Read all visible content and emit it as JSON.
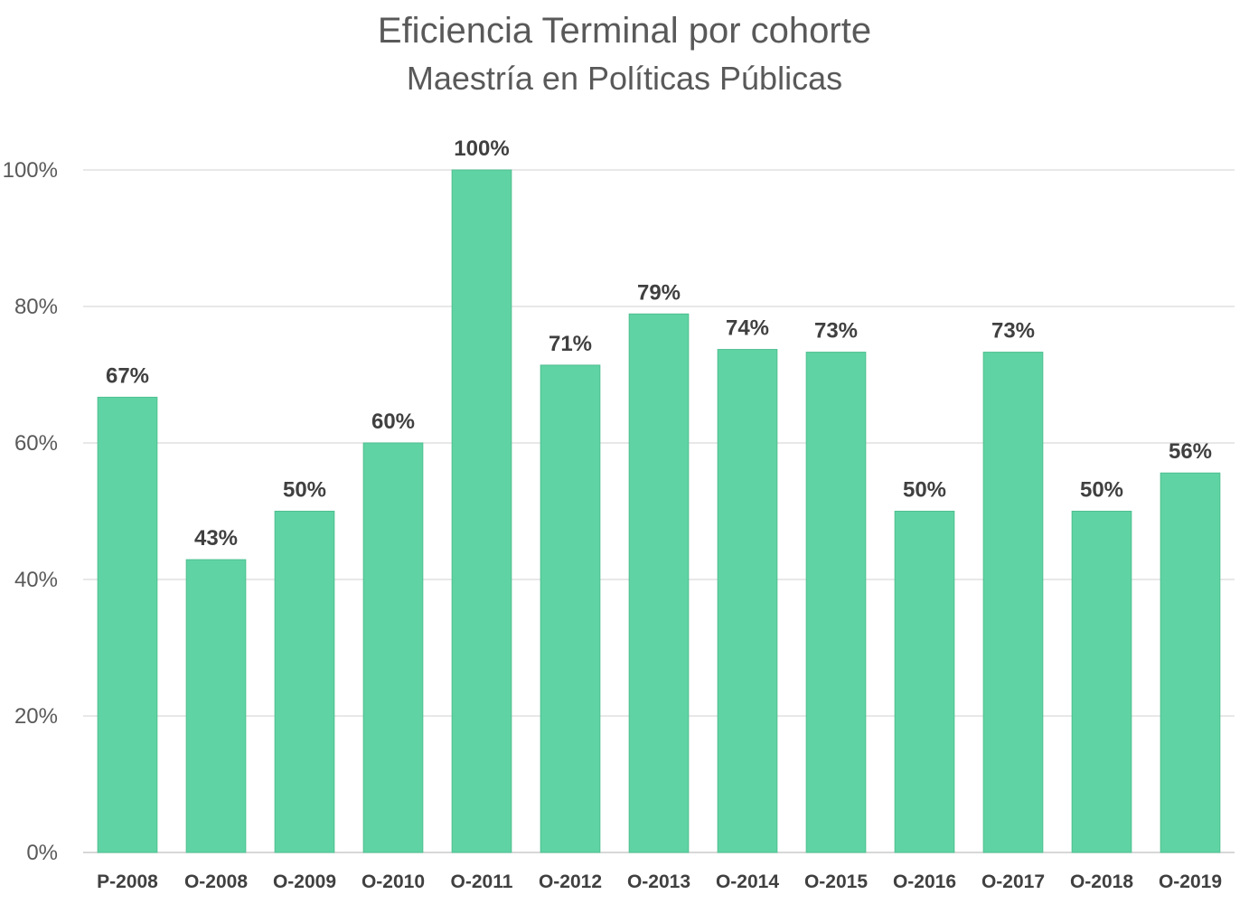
{
  "chart_data": {
    "type": "bar",
    "title": "Eficiencia Terminal por cohorte",
    "subtitle": "Maestría en Políticas Públicas",
    "categories": [
      "P-2008",
      "O-2008",
      "O-2009",
      "O-2010",
      "O-2011",
      "O-2012",
      "O-2013",
      "O-2014",
      "O-2015",
      "O-2016",
      "O-2017",
      "O-2018",
      "O-2019"
    ],
    "values": [
      67,
      43,
      50,
      60,
      100,
      71,
      79,
      74,
      73,
      50,
      73,
      50,
      56
    ],
    "bar_heights": [
      66.7,
      42.9,
      50,
      60,
      100,
      71.4,
      78.9,
      73.7,
      73.3,
      50,
      73.3,
      50,
      55.6
    ],
    "data_labels": [
      "67%",
      "43%",
      "50%",
      "60%",
      "100%",
      "71%",
      "79%",
      "74%",
      "73%",
      "50%",
      "73%",
      "50%",
      "56%"
    ],
    "yticks": [
      "0%",
      "20%",
      "40%",
      "60%",
      "80%",
      "100%"
    ],
    "ytick_values": [
      0,
      20,
      40,
      60,
      80,
      100
    ],
    "ylim": [
      0,
      100
    ],
    "xlabel": "",
    "ylabel": "",
    "grid": true,
    "legend": "none",
    "bar_color": "#5fd3a3"
  }
}
